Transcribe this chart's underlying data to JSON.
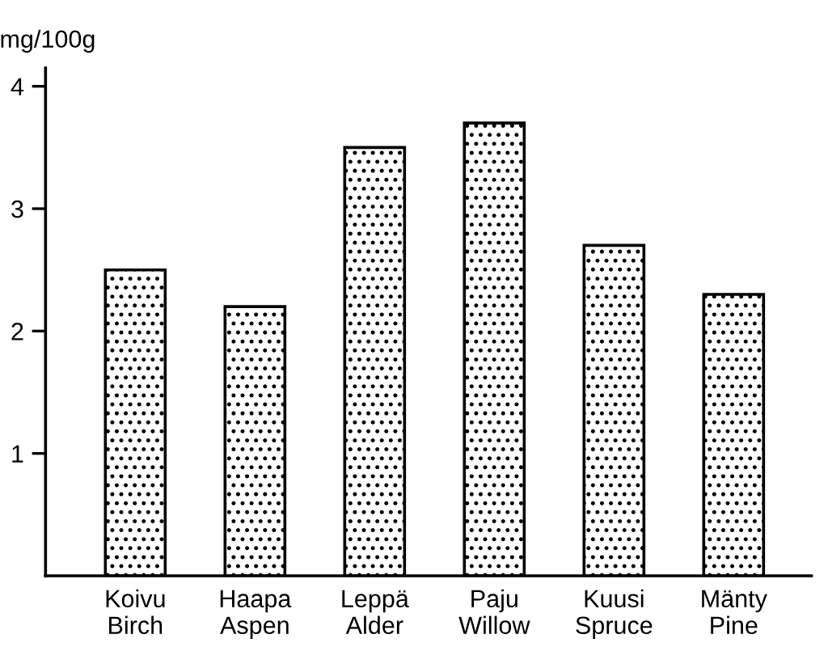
{
  "chart_data": {
    "type": "bar",
    "ylabel": "mg/100g",
    "categories": [
      "Koivu\nBirch",
      "Haapa\nAspen",
      "Leppä\nAlder",
      "Paju\nWillow",
      "Kuusi\nSpruce",
      "Mänty\nPine"
    ],
    "values": [
      2.5,
      2.2,
      3.5,
      3.7,
      2.7,
      2.3
    ],
    "color": "#000000",
    "ylim": [
      0,
      4.15
    ],
    "yticks": [
      1,
      2,
      3,
      4
    ],
    "grid": false,
    "legend": false
  }
}
